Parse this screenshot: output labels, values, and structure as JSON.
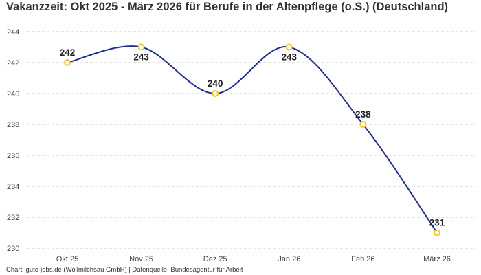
{
  "chart_data": {
    "type": "line",
    "title": "Vakanzzeit: Okt 2025 - März 2026 für Berufe in der Altenpflege (o.S.) (Deutschland)",
    "categories": [
      "Okt 25",
      "Nov 25",
      "Dez 25",
      "Jan 26",
      "Feb 26",
      "März 26"
    ],
    "series": [
      {
        "values": [
          242,
          243,
          240,
          243,
          238,
          231
        ]
      }
    ],
    "ylim": [
      230,
      244
    ],
    "yticks": [
      230,
      232,
      234,
      236,
      238,
      240,
      242,
      244
    ],
    "ytick_labels": [
      "230",
      "232",
      "234",
      "236",
      "238",
      "240",
      "242",
      "244"
    ],
    "data_labels": [
      "242",
      "243",
      "240",
      "243",
      "238",
      "231"
    ],
    "grid": "horizontal-dashed",
    "line_color": "#1f2e8f",
    "marker_color": "#f5c518",
    "marker_fill": "#ffffff",
    "grid_color": "#cccccc"
  },
  "footer": "Chart: gute-jobs.de (Wollmilchsau GmbH) | Datenquelle: Bundesagentur für Arbeit"
}
